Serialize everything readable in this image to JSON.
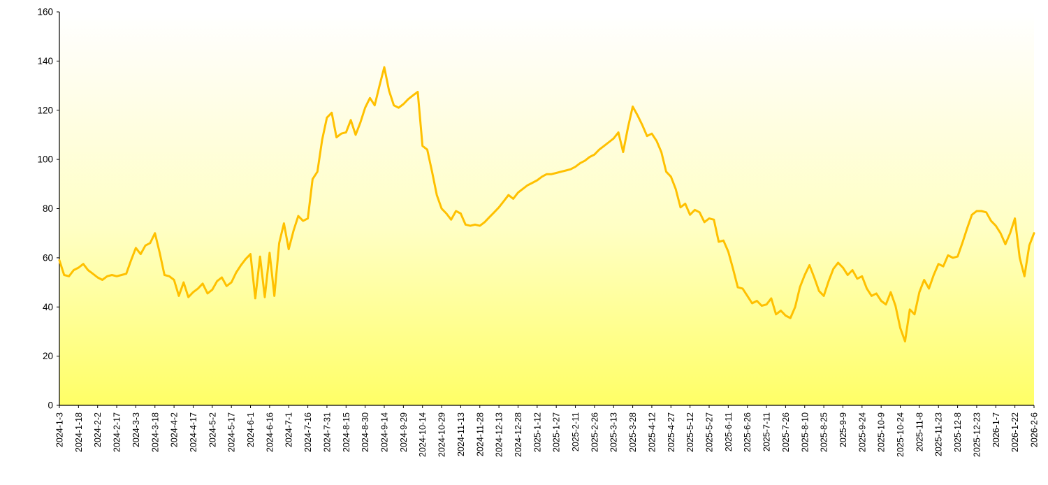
{
  "chart_data": {
    "type": "line",
    "title": "",
    "xlabel": "",
    "ylabel": "",
    "ylim": [
      0,
      160
    ],
    "ytick_step": 20,
    "grid": false,
    "legend": null,
    "line_color": "#FFC000",
    "line_width": 3,
    "axis_color": "#000000",
    "plot_bg_gradient": [
      {
        "offset": 0.0,
        "color": "#FFFFFF"
      },
      {
        "offset": 0.15,
        "color": "#FFFEF0"
      },
      {
        "offset": 0.55,
        "color": "#FFFFC4"
      },
      {
        "offset": 1.0,
        "color": "#FFFF66"
      }
    ],
    "points_per_tick": 4,
    "x_tick_labels": [
      "2024-1-3",
      "2024-1-18",
      "2024-2-2",
      "2024-2-17",
      "2024-3-3",
      "2024-3-18",
      "2024-4-2",
      "2024-4-17",
      "2024-5-2",
      "2024-5-17",
      "2024-6-1",
      "2024-6-16",
      "2024-7-1",
      "2024-7-16",
      "2024-7-31",
      "2024-8-15",
      "2024-8-30",
      "2024-9-14",
      "2024-9-29",
      "2024-10-14",
      "2024-10-29",
      "2024-11-13",
      "2024-11-28",
      "2024-12-13",
      "2024-12-28",
      "2025-1-12",
      "2025-1-27",
      "2025-2-11",
      "2025-2-26",
      "2025-3-13",
      "2025-3-28",
      "2025-4-12",
      "2025-4-27",
      "2025-5-12",
      "2025-5-27",
      "2025-6-11",
      "2025-6-26",
      "2025-7-11",
      "2025-7-26",
      "2025-8-10",
      "2025-8-25",
      "2025-9-9",
      "2025-9-24",
      "2025-10-9",
      "2025-10-24",
      "2025-11-8",
      "2025-11-23",
      "2025-12-8",
      "2025-12-23",
      "2026-1-7",
      "2026-1-22",
      "2026-2-6"
    ],
    "values": [
      59,
      53,
      52.5,
      55,
      56,
      57.5,
      55,
      53.5,
      52,
      51,
      52.5,
      53,
      52.5,
      53,
      53.5,
      59,
      64,
      61.5,
      65,
      66,
      70,
      62,
      53,
      52.5,
      51,
      44.5,
      50,
      44,
      46,
      47.5,
      49.5,
      45.5,
      47,
      50.5,
      52,
      48.5,
      50,
      54,
      57,
      59.5,
      61.5,
      43.5,
      60.5,
      44,
      62,
      44.5,
      66,
      74,
      63.5,
      71,
      77,
      75,
      76,
      92,
      95,
      108,
      117,
      119,
      109,
      110.5,
      111,
      116,
      110,
      115,
      121,
      125,
      122,
      130,
      137.5,
      128,
      122,
      121,
      122.5,
      124.5,
      126,
      127.5,
      105.5,
      104,
      95,
      85.5,
      80,
      78,
      75.5,
      79,
      78,
      73.5,
      73,
      73.5,
      73,
      74.5,
      76.5,
      78.5,
      80.5,
      83,
      85.5,
      84,
      86.5,
      88,
      89.5,
      90.5,
      91.5,
      93,
      94,
      94,
      94.5,
      95,
      95.5,
      96,
      97,
      98.5,
      99.5,
      101,
      102,
      104,
      105.5,
      107,
      108.5,
      111,
      103,
      113,
      121.5,
      118,
      114,
      109.5,
      110.5,
      107.5,
      103,
      95,
      93,
      88,
      80.5,
      82,
      77.5,
      79.5,
      78.5,
      74.5,
      76,
      75.5,
      66.5,
      67,
      62.5,
      55.5,
      48,
      47.5,
      44.5,
      41.5,
      42.5,
      40.5,
      41,
      43.5,
      37,
      38.5,
      36.5,
      35.5,
      40,
      48,
      53,
      57,
      52,
      46.5,
      44.5,
      50.5,
      55.5,
      58,
      56,
      53,
      55,
      51.5,
      52.5,
      47.5,
      44.5,
      45.5,
      42.5,
      41,
      46,
      40.5,
      31.5,
      26,
      39,
      37,
      46,
      51,
      47.5,
      53,
      57.5,
      56.5,
      61,
      60,
      60.5,
      66,
      72,
      77.5,
      79,
      79,
      78.5,
      75,
      73,
      70,
      65.5,
      70,
      76,
      60,
      52.5,
      65,
      70
    ]
  }
}
